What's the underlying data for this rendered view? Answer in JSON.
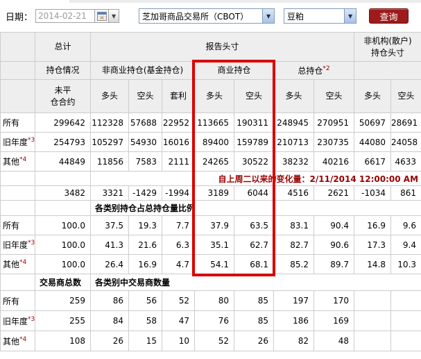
{
  "colors": {
    "accent_red": "#d90000",
    "note_red": "#990000",
    "button_red": "#9e1b1b",
    "header_bg": "#eeeeee",
    "border": "#cccccc"
  },
  "toolbar": {
    "date_label": "日期：",
    "date_value": "2014-02-21",
    "calendar_icon": "calendar-icon",
    "exchange_select": "芝加哥商品交易所（CBOT）",
    "product_select": "豆粕",
    "query_button": "查询"
  },
  "table": {
    "header": {
      "total": "总计",
      "reported": "报告头寸",
      "nonreportable_line1": "非机构(散户)",
      "nonreportable_line2": "持仓头寸",
      "holding": "持仓情况",
      "noncommercial": "非商业持仓(基金持仓)",
      "commercial": "商业持仓",
      "total_positions": "总持仓",
      "total_positions_sup": "*2",
      "open_interest_line1": "未平",
      "open_interest_line2": "仓合约",
      "long": "多头",
      "short": "空头",
      "spread": "套利"
    },
    "body_rows": [
      {
        "type": "data",
        "cells": [
          {
            "t": "所有",
            "cls": "label"
          },
          {
            "t": "299642"
          },
          {
            "t": "112328"
          },
          {
            "t": "57688"
          },
          {
            "t": "22952"
          },
          {
            "t": "113665"
          },
          {
            "t": "190311"
          },
          {
            "t": "248945"
          },
          {
            "t": "270951"
          },
          {
            "t": "50697"
          },
          {
            "t": "28691"
          }
        ]
      },
      {
        "type": "data",
        "cells": [
          {
            "t": "旧年度",
            "sup": "*3",
            "cls": "label"
          },
          {
            "t": "254793"
          },
          {
            "t": "105297"
          },
          {
            "t": "54930"
          },
          {
            "t": "16016"
          },
          {
            "t": "89400"
          },
          {
            "t": "159789"
          },
          {
            "t": "210713"
          },
          {
            "t": "230735"
          },
          {
            "t": "44080"
          },
          {
            "t": "24058"
          }
        ]
      },
      {
        "type": "data",
        "cells": [
          {
            "t": "其他",
            "sup": "*4",
            "cls": "label"
          },
          {
            "t": "44849"
          },
          {
            "t": "11856"
          },
          {
            "t": "7583"
          },
          {
            "t": "2111"
          },
          {
            "t": "24265"
          },
          {
            "t": "30522"
          },
          {
            "t": "38232"
          },
          {
            "t": "40216"
          },
          {
            "t": "6617"
          },
          {
            "t": "4633"
          }
        ]
      },
      {
        "type": "slim",
        "cells": [
          {
            "t": "",
            "cls": "label"
          },
          {
            "t": ""
          },
          {
            "t": "",
            "colspan": 3
          },
          {
            "t": "自上周二以来的变化量：2/11/2014 12:00:00 AM",
            "colspan": 6,
            "cls": "note",
            "name": "change-note"
          }
        ]
      },
      {
        "type": "slim",
        "cells": [
          {
            "t": "",
            "cls": "label"
          },
          {
            "t": "3482"
          },
          {
            "t": "3321"
          },
          {
            "t": "-1429"
          },
          {
            "t": "-1994"
          },
          {
            "t": "3189"
          },
          {
            "t": "6044"
          },
          {
            "t": "4516"
          },
          {
            "t": "2621"
          },
          {
            "t": "-1034"
          },
          {
            "t": "861"
          }
        ]
      },
      {
        "type": "section",
        "cells": [
          {
            "t": "",
            "cls": "label"
          },
          {
            "t": ""
          },
          {
            "t": "各类别持仓占总持仓量比例",
            "colspan": 9,
            "cls": "section",
            "name": "section-title-percent"
          }
        ]
      },
      {
        "type": "data",
        "cells": [
          {
            "t": "所有",
            "cls": "label"
          },
          {
            "t": "100.0"
          },
          {
            "t": "37.5"
          },
          {
            "t": "19.3"
          },
          {
            "t": "7.7"
          },
          {
            "t": "37.9"
          },
          {
            "t": "63.5"
          },
          {
            "t": "83.1"
          },
          {
            "t": "90.4"
          },
          {
            "t": "16.9"
          },
          {
            "t": "9.6"
          }
        ]
      },
      {
        "type": "data",
        "cells": [
          {
            "t": "旧年度",
            "sup": "*3",
            "cls": "label"
          },
          {
            "t": "100.0"
          },
          {
            "t": "41.3"
          },
          {
            "t": "21.6"
          },
          {
            "t": "6.3"
          },
          {
            "t": "35.1"
          },
          {
            "t": "62.7"
          },
          {
            "t": "82.7"
          },
          {
            "t": "90.6"
          },
          {
            "t": "17.3"
          },
          {
            "t": "9.4"
          }
        ]
      },
      {
        "type": "data",
        "cells": [
          {
            "t": "其他",
            "sup": "*4",
            "cls": "label"
          },
          {
            "t": "100.0"
          },
          {
            "t": "26.4"
          },
          {
            "t": "16.9"
          },
          {
            "t": "4.7"
          },
          {
            "t": "54.1"
          },
          {
            "t": "68.1"
          },
          {
            "t": "85.2"
          },
          {
            "t": "89.7"
          },
          {
            "t": "14.8"
          },
          {
            "t": "10.3"
          }
        ]
      },
      {
        "type": "thead2",
        "cells": [
          {
            "t": "",
            "cls": "label"
          },
          {
            "t": "交易商总数",
            "cls": "section",
            "name": "section-title-traders-total"
          },
          {
            "t": "各类别中交易商数量",
            "colspan": 9,
            "cls": "section",
            "name": "section-title-traders-count"
          }
        ]
      },
      {
        "type": "traders",
        "cells": [
          {
            "t": "所有",
            "cls": "label"
          },
          {
            "t": "259"
          },
          {
            "t": "86"
          },
          {
            "t": "56"
          },
          {
            "t": "52"
          },
          {
            "t": "80"
          },
          {
            "t": "85"
          },
          {
            "t": "197"
          },
          {
            "t": "170"
          },
          {
            "t": ""
          },
          {
            "t": ""
          }
        ]
      },
      {
        "type": "traders",
        "cells": [
          {
            "t": "旧年度",
            "sup": "*3",
            "cls": "label"
          },
          {
            "t": "255"
          },
          {
            "t": "84"
          },
          {
            "t": "58"
          },
          {
            "t": "47"
          },
          {
            "t": "76"
          },
          {
            "t": "85"
          },
          {
            "t": "186"
          },
          {
            "t": "169"
          },
          {
            "t": ""
          },
          {
            "t": ""
          }
        ]
      },
      {
        "type": "traders",
        "cells": [
          {
            "t": "其他",
            "sup": "*4",
            "cls": "label"
          },
          {
            "t": "108"
          },
          {
            "t": "26"
          },
          {
            "t": "15"
          },
          {
            "t": "10"
          },
          {
            "t": "52"
          },
          {
            "t": "26"
          },
          {
            "t": "82"
          },
          {
            "t": "48"
          },
          {
            "t": ""
          },
          {
            "t": ""
          }
        ]
      }
    ]
  }
}
